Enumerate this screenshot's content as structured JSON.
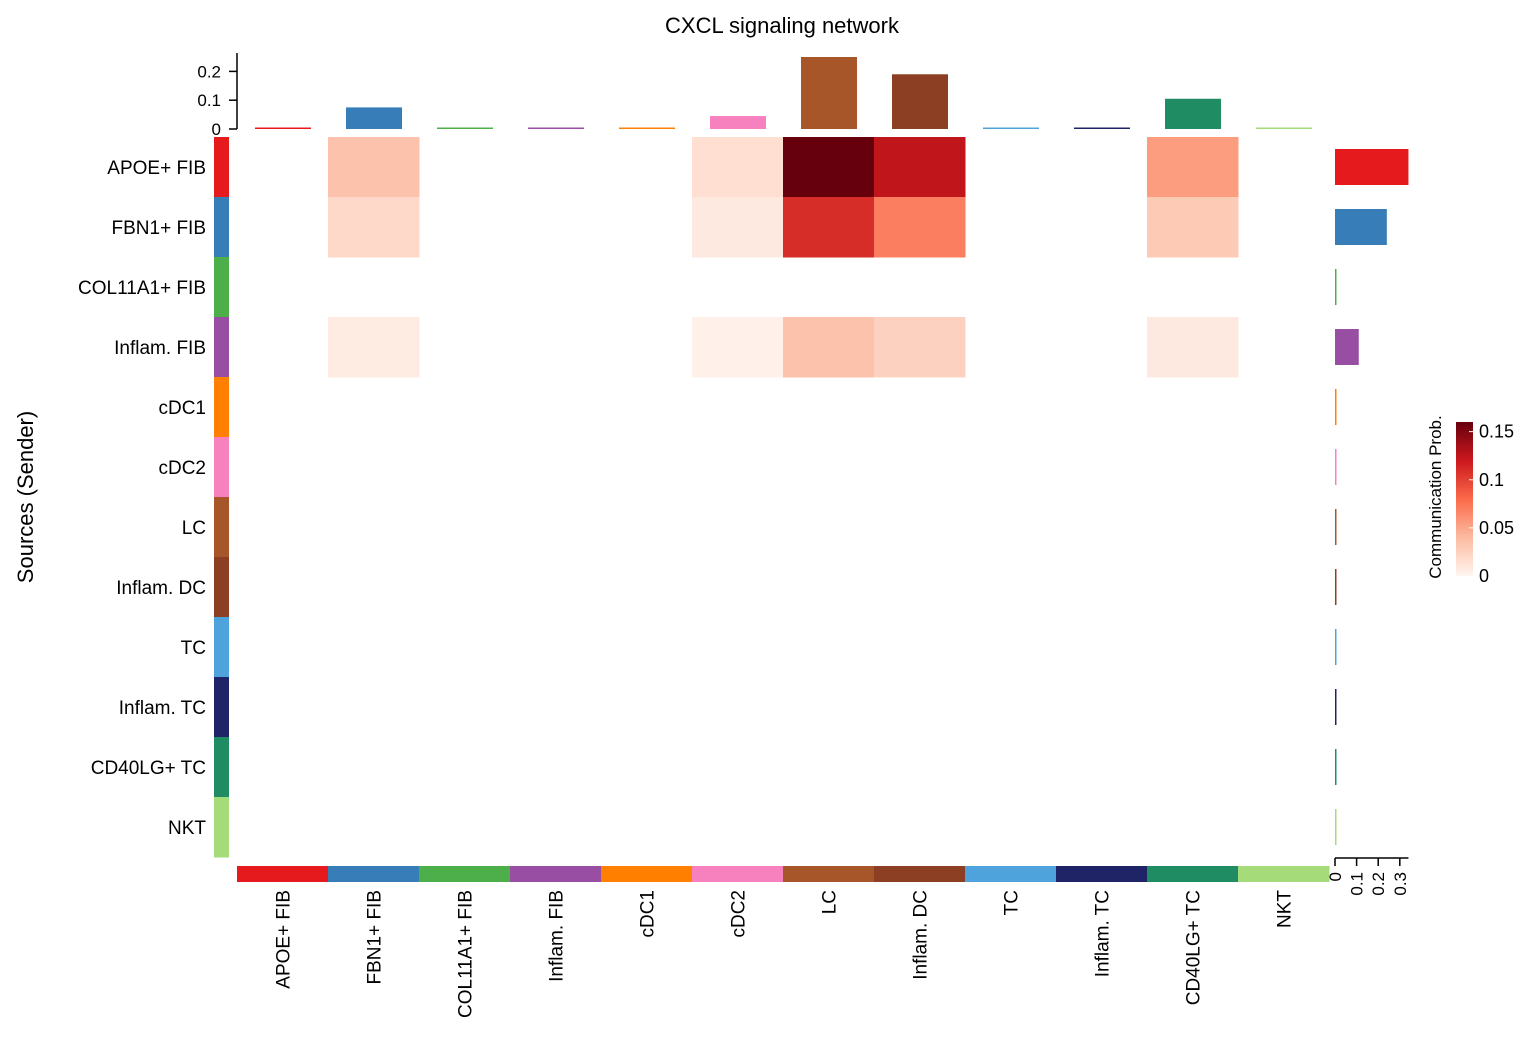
{
  "chart_data": {
    "type": "heatmap",
    "title": "CXCL signaling network",
    "ylabel": "Sources (Sender)",
    "xlabel": "",
    "rows": [
      "APOE+ FIB",
      "FBN1+ FIB",
      "COL11A1+ FIB",
      "Inflam. FIB",
      "cDC1",
      "cDC2",
      "LC",
      "Inflam. DC",
      "TC",
      "Inflam. TC",
      "CD40LG+ TC",
      "NKT"
    ],
    "cols": [
      "APOE+ FIB",
      "FBN1+ FIB",
      "COL11A1+ FIB",
      "Inflam. FIB",
      "cDC1",
      "cDC2",
      "LC",
      "Inflam. DC",
      "TC",
      "Inflam. TC",
      "CD40LG+ TC",
      "NKT"
    ],
    "group_colors": [
      "#E41A1C",
      "#377EB8",
      "#4DAF4A",
      "#984EA3",
      "#FF7F00",
      "#F781BF",
      "#A65628",
      "#8C3F22",
      "#4FA3DC",
      "#1F2466",
      "#1F8C63",
      "#A6DB7A"
    ],
    "values": [
      [
        0,
        0.035,
        0,
        0,
        0,
        0.015,
        0.16,
        0.125,
        0,
        0,
        0.055,
        0
      ],
      [
        0,
        0.02,
        0,
        0,
        0,
        0.008,
        0.11,
        0.07,
        0,
        0,
        0.03,
        0
      ],
      [
        0,
        0,
        0,
        0,
        0,
        0,
        0,
        0,
        0,
        0,
        0,
        0
      ],
      [
        0,
        0.007,
        0,
        0,
        0,
        0.003,
        0.035,
        0.025,
        0,
        0,
        0.008,
        0
      ],
      [
        0,
        0,
        0,
        0,
        0,
        0,
        0,
        0,
        0,
        0,
        0,
        0
      ],
      [
        0,
        0,
        0,
        0,
        0,
        0,
        0,
        0,
        0,
        0,
        0,
        0
      ],
      [
        0,
        0,
        0,
        0,
        0,
        0,
        0,
        0,
        0,
        0,
        0,
        0
      ],
      [
        0,
        0,
        0,
        0,
        0,
        0,
        0,
        0,
        0,
        0,
        0,
        0
      ],
      [
        0,
        0,
        0,
        0,
        0,
        0,
        0,
        0,
        0,
        0,
        0,
        0
      ],
      [
        0,
        0,
        0,
        0,
        0,
        0,
        0,
        0,
        0,
        0,
        0,
        0
      ],
      [
        0,
        0,
        0,
        0,
        0,
        0,
        0,
        0,
        0,
        0,
        0,
        0
      ],
      [
        0,
        0,
        0,
        0,
        0,
        0,
        0,
        0,
        0,
        0,
        0,
        0
      ]
    ],
    "top_bar": {
      "values": [
        0.001,
        0.075,
        0.001,
        0.001,
        0.001,
        0.045,
        0.25,
        0.19,
        0.001,
        0.001,
        0.105,
        0.001
      ],
      "ylim": [
        0,
        0.25
      ],
      "ticks": [
        0,
        0.1,
        0.2
      ],
      "tick_labels": [
        "0",
        "0.1",
        "0.2"
      ]
    },
    "right_bar": {
      "values": [
        0.34,
        0.24,
        0.003,
        0.11,
        0.003,
        0.003,
        0.003,
        0.003,
        0.003,
        0.003,
        0.003,
        0.003
      ],
      "xlim": [
        0,
        0.34
      ],
      "ticks": [
        0,
        0.1,
        0.2,
        0.3
      ],
      "tick_labels": [
        "0",
        "0.1",
        "0.2",
        "0.3"
      ]
    },
    "legend": {
      "title": "Communication Prob.",
      "min": 0,
      "max": 0.16,
      "ticks": [
        0,
        0.05,
        0.1,
        0.15
      ],
      "tick_labels": [
        "0",
        "0.05",
        "0.1",
        "0.15"
      ],
      "colors": [
        "#FFF5F0",
        "#FCBBA1",
        "#FB6A4A",
        "#CB181D",
        "#67000D"
      ],
      "placement": "right"
    }
  }
}
